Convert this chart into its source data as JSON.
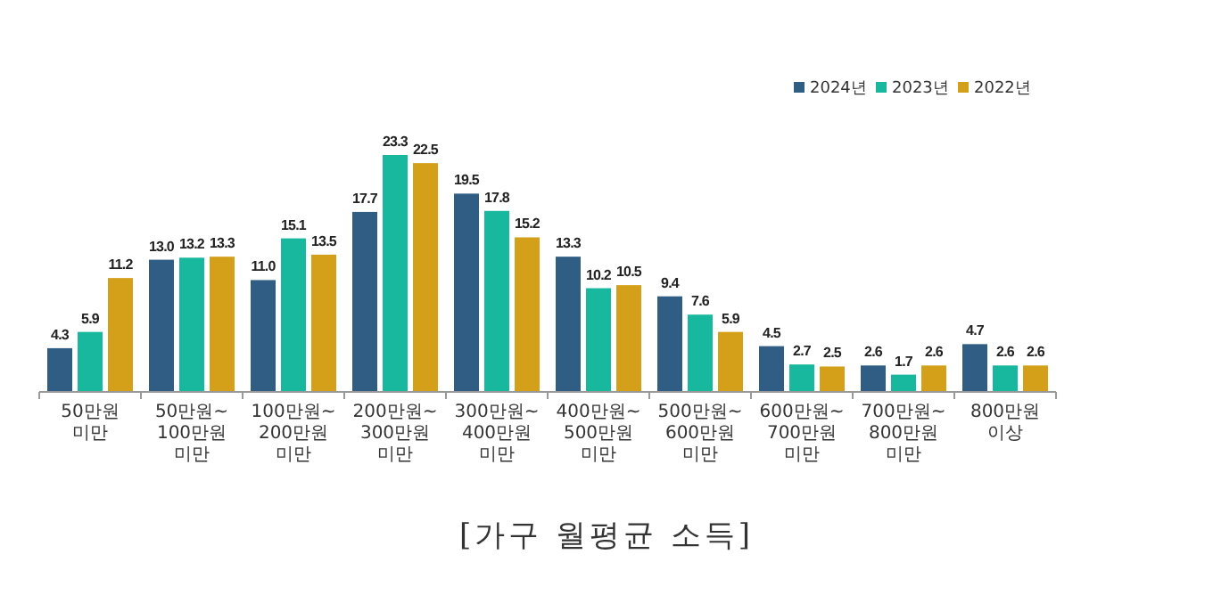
{
  "chart_data": {
    "type": "bar",
    "title": "[가구 월평균 소득]",
    "categories": [
      "50만원\n미만",
      "50만원~\n100만원\n미만",
      "100만원~\n200만원\n미만",
      "200만원~\n300만원\n미만",
      "300만원~\n400만원\n미만",
      "400만원~\n500만원\n미만",
      "500만원~\n600만원\n미만",
      "600만원~\n700만원\n미만",
      "700만원~\n800만원\n미만",
      "800만원\n이상"
    ],
    "series": [
      {
        "name": "2024년",
        "color": "#2f5d84",
        "values": [
          4.3,
          13.0,
          11.0,
          17.7,
          19.5,
          13.3,
          9.4,
          4.5,
          2.6,
          4.7
        ],
        "value_labels": [
          "4.3",
          "13.0",
          "11.0",
          "17.7",
          "19.5",
          "13.3",
          "9.4",
          "4.5",
          "2.6",
          "4.7"
        ]
      },
      {
        "name": "2023년",
        "color": "#17b89e",
        "values": [
          5.9,
          13.2,
          15.1,
          23.3,
          17.8,
          10.2,
          7.6,
          2.7,
          1.7,
          2.6
        ],
        "value_labels": [
          "5.9",
          "13.2",
          "15.1",
          "23.3",
          "17.8",
          "10.2",
          "7.6",
          "2.7",
          "1.7",
          "2.6"
        ]
      },
      {
        "name": "2022년",
        "color": "#d4a01a",
        "values": [
          11.2,
          13.3,
          13.5,
          22.5,
          15.2,
          10.5,
          5.9,
          2.5,
          2.6,
          2.6
        ],
        "value_labels": [
          "11.2",
          "13.3",
          "13.5",
          "22.5",
          "15.2",
          "10.5",
          "5.9",
          "2.5",
          "2.6",
          "2.6"
        ]
      }
    ],
    "legend": "top right"
  }
}
